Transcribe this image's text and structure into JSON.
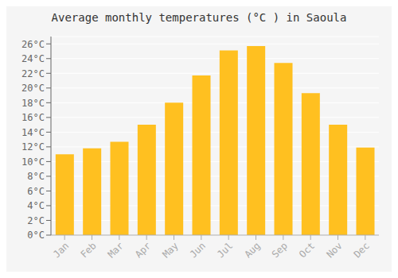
{
  "chart_data": {
    "type": "bar",
    "title": "Average monthly temperatures (°C ) in Saoula",
    "categories": [
      "Jan",
      "Feb",
      "Mar",
      "Apr",
      "May",
      "Jun",
      "Jul",
      "Aug",
      "Sep",
      "Oct",
      "Nov",
      "Dec"
    ],
    "values": [
      11.0,
      11.8,
      12.7,
      15.0,
      18.0,
      21.7,
      25.1,
      25.7,
      23.4,
      19.3,
      15.0,
      11.9
    ],
    "color": "#FFC020",
    "ylim": [
      0,
      27
    ],
    "yticks": [
      {
        "value": 0,
        "label": "0°C"
      },
      {
        "value": 2,
        "label": "2°C"
      },
      {
        "value": 4,
        "label": "4°C"
      },
      {
        "value": 6,
        "label": "6°C"
      },
      {
        "value": 8,
        "label": "8°C"
      },
      {
        "value": 10,
        "label": "10°C"
      },
      {
        "value": 12,
        "label": "12°C"
      },
      {
        "value": 14,
        "label": "14°C"
      },
      {
        "value": 16,
        "label": "16°C"
      },
      {
        "value": 18,
        "label": "18°C"
      },
      {
        "value": 20,
        "label": "20°C"
      },
      {
        "value": 22,
        "label": "22°C"
      },
      {
        "value": 24,
        "label": "24°C"
      },
      {
        "value": 26,
        "label": "26°C"
      }
    ],
    "grid": true
  }
}
